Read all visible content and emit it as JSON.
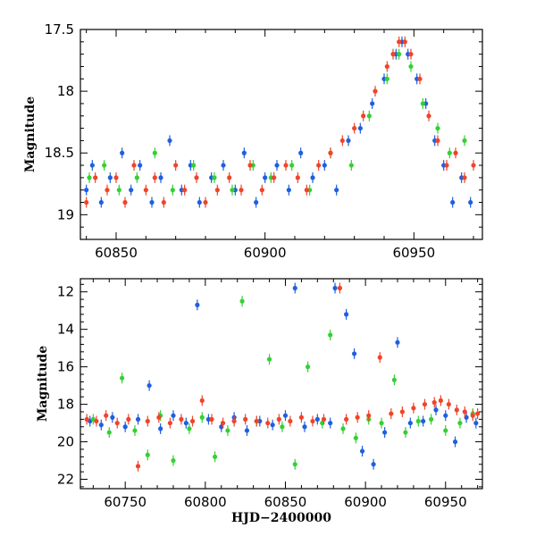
{
  "chart_data": [
    {
      "type": "scatter",
      "xlabel": "",
      "ylabel": "Magnitude",
      "xlim": [
        60838,
        60973
      ],
      "ylim": [
        19.2,
        17.5
      ],
      "y_inverted": true,
      "xticks": [
        60850,
        60900,
        60950
      ],
      "yticks": [
        17.5,
        18,
        18.5,
        19
      ],
      "ytick_labels": [
        "17.5",
        "18",
        "18.5",
        "19"
      ],
      "grid": false,
      "series": [
        {
          "color": "#1f5fe0",
          "points": [
            [
              60840,
              18.8
            ],
            [
              60842,
              18.6
            ],
            [
              60845,
              18.9
            ],
            [
              60848,
              18.7
            ],
            [
              60852,
              18.5
            ],
            [
              60855,
              18.8
            ],
            [
              60858,
              18.6
            ],
            [
              60862,
              18.9
            ],
            [
              60865,
              18.7
            ],
            [
              60868,
              18.4
            ],
            [
              60872,
              18.8
            ],
            [
              60875,
              18.6
            ],
            [
              60878,
              18.9
            ],
            [
              60882,
              18.7
            ],
            [
              60886,
              18.6
            ],
            [
              60890,
              18.8
            ],
            [
              60893,
              18.5
            ],
            [
              60897,
              18.9
            ],
            [
              60900,
              18.7
            ],
            [
              60904,
              18.6
            ],
            [
              60908,
              18.8
            ],
            [
              60912,
              18.5
            ],
            [
              60916,
              18.7
            ],
            [
              60920,
              18.6
            ],
            [
              60924,
              18.8
            ],
            [
              60928,
              18.4
            ],
            [
              60932,
              18.3
            ],
            [
              60936,
              18.1
            ],
            [
              60940,
              17.9
            ],
            [
              60944,
              17.7
            ],
            [
              60946,
              17.6
            ],
            [
              60948,
              17.7
            ],
            [
              60951,
              17.9
            ],
            [
              60954,
              18.1
            ],
            [
              60957,
              18.4
            ],
            [
              60960,
              18.6
            ],
            [
              60963,
              18.9
            ],
            [
              60966,
              18.7
            ],
            [
              60969,
              18.9
            ]
          ]
        },
        {
          "color": "#33d133",
          "points": [
            [
              60841,
              18.7
            ],
            [
              60846,
              18.6
            ],
            [
              60851,
              18.8
            ],
            [
              60857,
              18.7
            ],
            [
              60863,
              18.5
            ],
            [
              60869,
              18.8
            ],
            [
              60876,
              18.6
            ],
            [
              60883,
              18.7
            ],
            [
              60889,
              18.8
            ],
            [
              60896,
              18.6
            ],
            [
              60902,
              18.7
            ],
            [
              60909,
              18.6
            ],
            [
              60915,
              18.8
            ],
            [
              60922,
              18.5
            ],
            [
              60929,
              18.6
            ],
            [
              60935,
              18.2
            ],
            [
              60941,
              17.9
            ],
            [
              60945,
              17.7
            ],
            [
              60949,
              17.8
            ],
            [
              60953,
              18.1
            ],
            [
              60958,
              18.3
            ],
            [
              60962,
              18.5
            ],
            [
              60967,
              18.4
            ]
          ]
        },
        {
          "color": "#f0442a",
          "points": [
            [
              60840,
              18.9
            ],
            [
              60843,
              18.7
            ],
            [
              60847,
              18.8
            ],
            [
              60850,
              18.7
            ],
            [
              60853,
              18.9
            ],
            [
              60856,
              18.6
            ],
            [
              60860,
              18.8
            ],
            [
              60863,
              18.7
            ],
            [
              60866,
              18.9
            ],
            [
              60870,
              18.6
            ],
            [
              60873,
              18.8
            ],
            [
              60877,
              18.7
            ],
            [
              60880,
              18.9
            ],
            [
              60884,
              18.8
            ],
            [
              60888,
              18.7
            ],
            [
              60892,
              18.8
            ],
            [
              60895,
              18.6
            ],
            [
              60899,
              18.8
            ],
            [
              60903,
              18.7
            ],
            [
              60907,
              18.6
            ],
            [
              60911,
              18.7
            ],
            [
              60914,
              18.8
            ],
            [
              60918,
              18.6
            ],
            [
              60922,
              18.5
            ],
            [
              60926,
              18.4
            ],
            [
              60930,
              18.3
            ],
            [
              60933,
              18.2
            ],
            [
              60937,
              18.0
            ],
            [
              60941,
              17.8
            ],
            [
              60943,
              17.7
            ],
            [
              60945,
              17.6
            ],
            [
              60947,
              17.6
            ],
            [
              60949,
              17.7
            ],
            [
              60952,
              17.9
            ],
            [
              60955,
              18.2
            ],
            [
              60958,
              18.4
            ],
            [
              60961,
              18.6
            ],
            [
              60964,
              18.5
            ],
            [
              60967,
              18.7
            ],
            [
              60970,
              18.6
            ]
          ]
        }
      ]
    },
    {
      "type": "scatter",
      "xlabel": "HJD−2400000",
      "ylabel": "Magnitude",
      "xlim": [
        60722,
        60973
      ],
      "ylim": [
        22.5,
        11.3
      ],
      "y_inverted": true,
      "xticks": [
        60750,
        60800,
        60850,
        60900,
        60950
      ],
      "yticks": [
        12,
        14,
        16,
        18,
        20,
        22
      ],
      "ytick_labels": [
        "12",
        "14",
        "16",
        "18",
        "20",
        "22"
      ],
      "grid": false,
      "series": [
        {
          "color": "#1f5fe0",
          "points": [
            [
              60728,
              18.9
            ],
            [
              60735,
              19.1
            ],
            [
              60742,
              18.7
            ],
            [
              60750,
              19.2
            ],
            [
              60758,
              18.8
            ],
            [
              60765,
              17.0
            ],
            [
              60772,
              19.3
            ],
            [
              60780,
              18.6
            ],
            [
              60788,
              19.0
            ],
            [
              60795,
              12.7
            ],
            [
              60802,
              18.8
            ],
            [
              60810,
              19.2
            ],
            [
              60818,
              18.7
            ],
            [
              60826,
              19.4
            ],
            [
              60834,
              18.9
            ],
            [
              60842,
              19.1
            ],
            [
              60850,
              18.6
            ],
            [
              60856,
              11.8
            ],
            [
              60862,
              19.2
            ],
            [
              60870,
              18.8
            ],
            [
              60878,
              19.0
            ],
            [
              60881,
              11.8
            ],
            [
              60888,
              13.2
            ],
            [
              60893,
              15.3
            ],
            [
              60898,
              20.5
            ],
            [
              60905,
              21.2
            ],
            [
              60912,
              19.5
            ],
            [
              60920,
              14.7
            ],
            [
              60928,
              19.0
            ],
            [
              60936,
              18.9
            ],
            [
              60944,
              18.3
            ],
            [
              60950,
              18.6
            ],
            [
              60956,
              20.0
            ],
            [
              60963,
              18.7
            ],
            [
              60969,
              19.0
            ]
          ]
        },
        {
          "color": "#33d133",
          "points": [
            [
              60730,
              18.8
            ],
            [
              60740,
              19.5
            ],
            [
              60748,
              16.6
            ],
            [
              60756,
              19.4
            ],
            [
              60764,
              20.7
            ],
            [
              60772,
              18.6
            ],
            [
              60780,
              21.0
            ],
            [
              60790,
              19.3
            ],
            [
              60798,
              18.7
            ],
            [
              60806,
              20.8
            ],
            [
              60814,
              19.4
            ],
            [
              60823,
              12.5
            ],
            [
              60832,
              18.9
            ],
            [
              60840,
              15.6
            ],
            [
              60848,
              19.2
            ],
            [
              60856,
              21.2
            ],
            [
              60864,
              16.0
            ],
            [
              60873,
              19.0
            ],
            [
              60878,
              14.3
            ],
            [
              60886,
              19.3
            ],
            [
              60894,
              19.8
            ],
            [
              60902,
              18.8
            ],
            [
              60910,
              19.0
            ],
            [
              60918,
              16.7
            ],
            [
              60925,
              19.5
            ],
            [
              60933,
              18.9
            ],
            [
              60941,
              18.8
            ],
            [
              60950,
              19.4
            ],
            [
              60959,
              19.0
            ],
            [
              60967,
              18.5
            ]
          ]
        },
        {
          "color": "#f0442a",
          "points": [
            [
              60726,
              18.8
            ],
            [
              60732,
              18.9
            ],
            [
              60738,
              18.6
            ],
            [
              60745,
              19.0
            ],
            [
              60752,
              18.8
            ],
            [
              60758,
              21.3
            ],
            [
              60764,
              18.9
            ],
            [
              60771,
              18.7
            ],
            [
              60778,
              19.0
            ],
            [
              60785,
              18.8
            ],
            [
              60792,
              18.9
            ],
            [
              60798,
              17.8
            ],
            [
              60804,
              18.8
            ],
            [
              60811,
              19.0
            ],
            [
              60818,
              18.9
            ],
            [
              60825,
              18.8
            ],
            [
              60832,
              18.9
            ],
            [
              60839,
              19.0
            ],
            [
              60846,
              18.8
            ],
            [
              60853,
              18.9
            ],
            [
              60860,
              18.7
            ],
            [
              60867,
              18.9
            ],
            [
              60874,
              18.8
            ],
            [
              60884,
              11.8
            ],
            [
              60888,
              18.8
            ],
            [
              60895,
              18.7
            ],
            [
              60902,
              18.6
            ],
            [
              60909,
              15.5
            ],
            [
              60916,
              18.5
            ],
            [
              60923,
              18.4
            ],
            [
              60930,
              18.2
            ],
            [
              60937,
              18.0
            ],
            [
              60943,
              17.9
            ],
            [
              60947,
              17.8
            ],
            [
              60952,
              18.0
            ],
            [
              60957,
              18.3
            ],
            [
              60962,
              18.4
            ],
            [
              60967,
              18.6
            ],
            [
              60970,
              18.5
            ]
          ]
        }
      ]
    }
  ]
}
